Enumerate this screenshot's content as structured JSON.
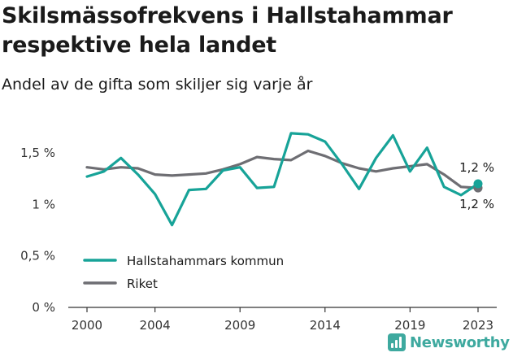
{
  "title": "Skilsmässofrekvens i Hallstahammar respektive hela landet",
  "subtitle": "Andel av de gifta som skiljer sig varje år",
  "brand": {
    "name": "Newsworthy",
    "icon": "newsworthy-logo-icon",
    "color": "#3ea99f"
  },
  "chart_data": {
    "type": "line",
    "title": "Skilsmässofrekvens i Hallstahammar respektive hela landet",
    "subtitle": "Andel av de gifta som skiljer sig varje år",
    "xlabel": "",
    "ylabel": "",
    "x": [
      2000,
      2001,
      2002,
      2003,
      2004,
      2005,
      2006,
      2007,
      2008,
      2009,
      2010,
      2011,
      2012,
      2013,
      2014,
      2015,
      2016,
      2017,
      2018,
      2019,
      2020,
      2021,
      2022,
      2023
    ],
    "xlim": [
      2000,
      2023
    ],
    "ylim": [
      0,
      1.8
    ],
    "x_ticks": [
      2000,
      2004,
      2009,
      2014,
      2019,
      2023
    ],
    "x_tick_labels": [
      "2000",
      "2004",
      "2009",
      "2014",
      "2019",
      "2023"
    ],
    "y_ticks": [
      0,
      0.5,
      1,
      1.5
    ],
    "y_tick_labels": [
      "0 %",
      "0,5 %",
      "1 %",
      "1,5 %"
    ],
    "grid": false,
    "legend_position": "bottom-left",
    "series": [
      {
        "name": "Hallstahammars kommun",
        "color": "#17a398",
        "values": [
          1.27,
          1.32,
          1.45,
          1.29,
          1.1,
          0.8,
          1.14,
          1.15,
          1.33,
          1.36,
          1.16,
          1.17,
          1.69,
          1.68,
          1.61,
          1.39,
          1.15,
          1.45,
          1.67,
          1.32,
          1.55,
          1.17,
          1.09,
          1.2
        ],
        "end_label": "1,2 %"
      },
      {
        "name": "Riket",
        "color": "#6e6e73",
        "values": [
          1.36,
          1.34,
          1.36,
          1.35,
          1.29,
          1.28,
          1.29,
          1.3,
          1.34,
          1.39,
          1.46,
          1.44,
          1.43,
          1.52,
          1.47,
          1.4,
          1.35,
          1.32,
          1.35,
          1.37,
          1.39,
          1.29,
          1.17,
          1.16
        ],
        "end_label": "1,2 %"
      }
    ]
  }
}
